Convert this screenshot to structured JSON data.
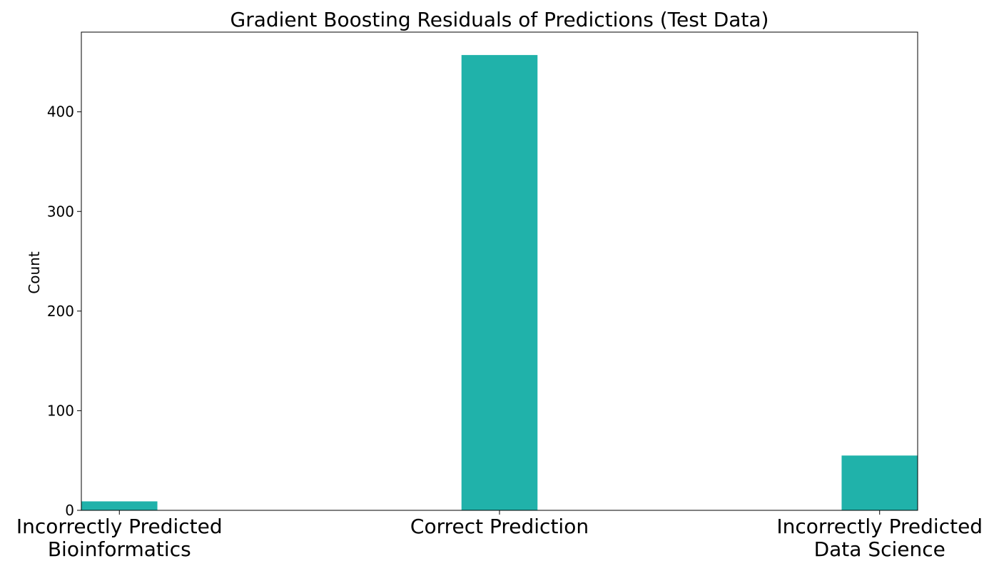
{
  "chart_data": {
    "type": "bar",
    "title": "Gradient Boosting Residuals of Predictions (Test Data)",
    "xlabel": "",
    "ylabel": "Count",
    "categories": [
      [
        "Incorrectly Predicted",
        "Bioinformatics"
      ],
      [
        "Correct Prediction"
      ],
      [
        "Incorrectly Predicted",
        "Data Science"
      ]
    ],
    "x": [
      -1,
      0,
      1
    ],
    "values": [
      9,
      457,
      55
    ],
    "bar_width": 0.2,
    "xlim": [
      -1.1,
      1.1
    ],
    "ylim": [
      0,
      480
    ],
    "yticks": [
      0,
      100,
      200,
      300,
      400
    ],
    "bar_color": "#20b2aa",
    "grid": false
  }
}
